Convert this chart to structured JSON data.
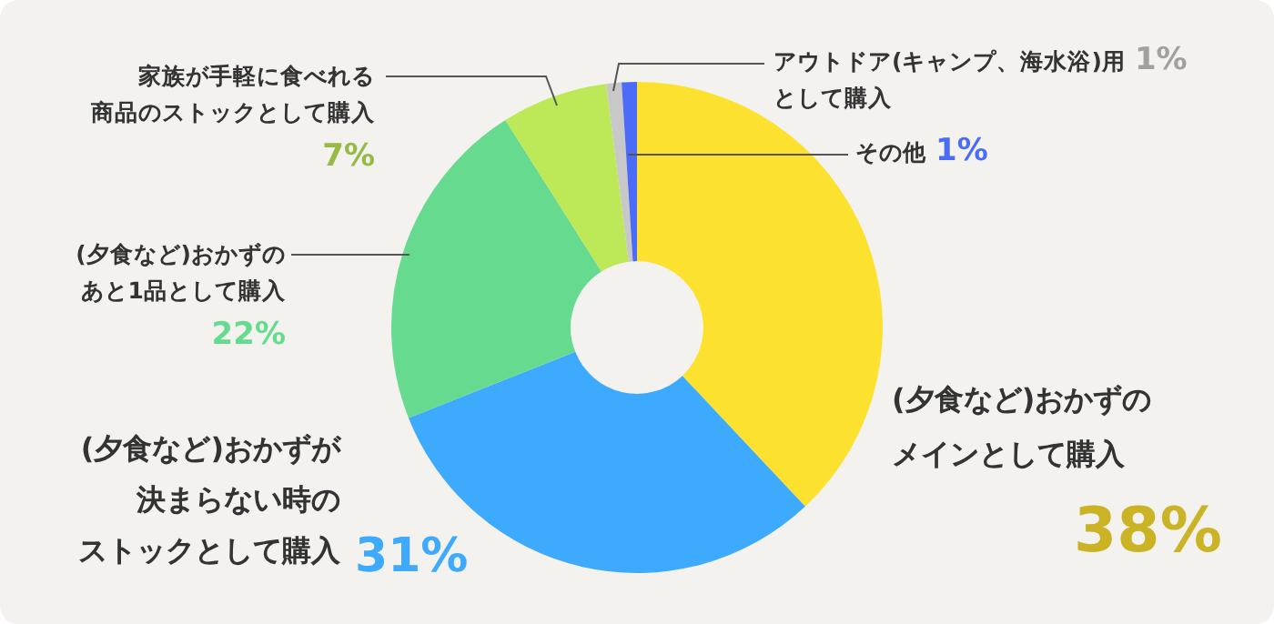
{
  "chart_data": {
    "type": "donut",
    "categories": [
      "(夕食など)おかずのメインとして購入",
      "(夕食など)おかずが決まらない時のストックとして購入",
      "(夕食など)おかずのあと1品として購入",
      "家族が手軽に食べれる商品のストックとして購入",
      "アウトドア(キャンプ、海水浴)用として購入",
      "その他"
    ],
    "values": [
      38,
      31,
      22,
      7,
      1,
      1
    ],
    "colors": [
      "#fde12f",
      "#3eaafd",
      "#66db90",
      "#bde857",
      "#c8c8c8",
      "#4a6cf7"
    ],
    "value_labels": [
      "38%",
      "31%",
      "22%",
      "7%",
      "1%",
      "1%"
    ],
    "legend": false
  }
}
